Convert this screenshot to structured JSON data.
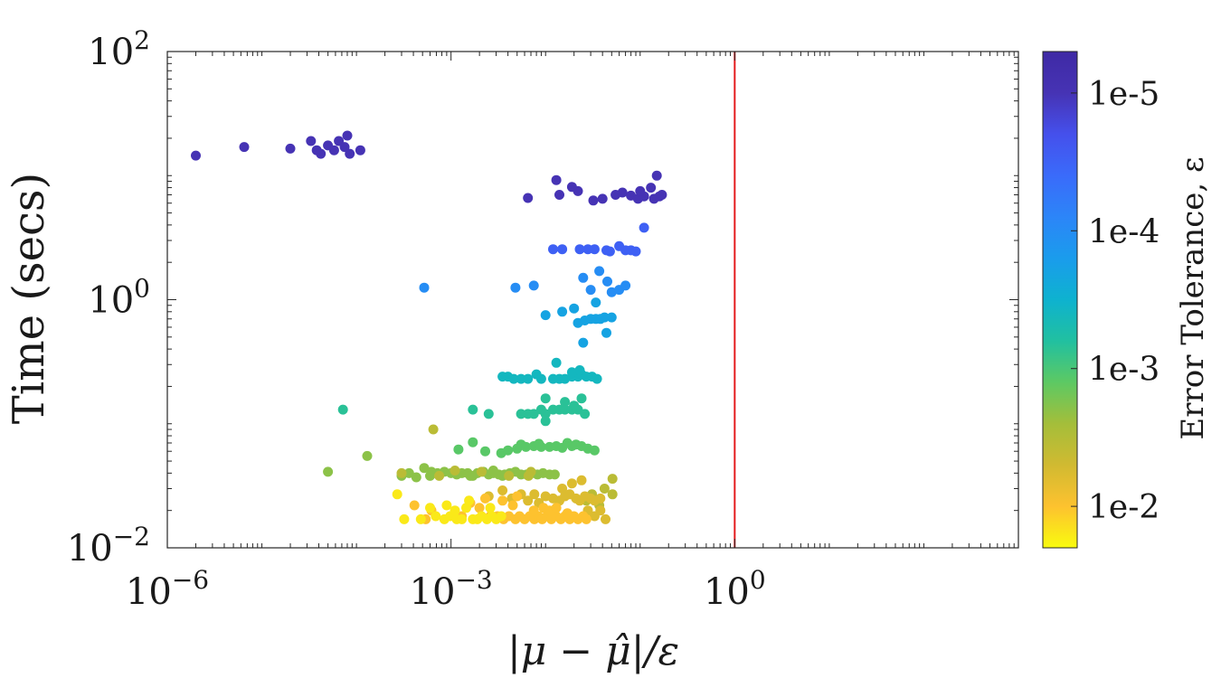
{
  "chart_data": {
    "type": "scatter",
    "xlabel": "|μ − μ̂|/ε",
    "ylabel": "Time (secs)",
    "colorbar_label": "Error Tolerance, ε",
    "x_scale": "log",
    "y_scale": "log",
    "xlim": [
      1e-06,
      1000
    ],
    "ylim": [
      0.01,
      100
    ],
    "x_ticks": [
      {
        "value": 1e-06,
        "base": "10",
        "exp": "−6"
      },
      {
        "value": 0.001,
        "base": "10",
        "exp": "−3"
      },
      {
        "value": 1,
        "base": "10",
        "exp": "0"
      }
    ],
    "y_ticks": [
      {
        "value": 0.01,
        "base": "10",
        "exp": "−2"
      },
      {
        "value": 1,
        "base": "10",
        "exp": "0"
      },
      {
        "value": 100,
        "base": "10",
        "exp": "2"
      }
    ],
    "colorbar": {
      "scale": "log",
      "range": [
        0.02,
        5e-06
      ],
      "ticks": [
        {
          "value": 1e-05,
          "label": "1e-5"
        },
        {
          "value": 0.0001,
          "label": "1e-4"
        },
        {
          "value": 0.001,
          "label": "1e-3"
        },
        {
          "value": 0.01,
          "label": "1e-2"
        }
      ],
      "colormap": [
        "#f9fb0e",
        "#fdc22f",
        "#d1ba31",
        "#a4be3a",
        "#5dc963",
        "#21c0a0",
        "#0eb2cf",
        "#1a9cec",
        "#2c85f8",
        "#3a6bfa",
        "#4550ec",
        "#4633b4",
        "#3f2aa5"
      ]
    },
    "reference_line": {
      "x": 1,
      "color": "#e41a1c"
    },
    "series": [
      {
        "tolerance": 1e-05,
        "points": [
          [
            2e-06,
            14.5
          ],
          [
            6.5e-06,
            17
          ],
          [
            2e-05,
            16.5
          ],
          [
            3.3e-05,
            19
          ],
          [
            3.8e-05,
            16
          ],
          [
            4.2e-05,
            15
          ],
          [
            5e-05,
            17.5
          ],
          [
            5.8e-05,
            16
          ],
          [
            6.5e-05,
            19
          ],
          [
            7.5e-05,
            17
          ],
          [
            8e-05,
            21
          ],
          [
            8.5e-05,
            15
          ],
          [
            0.00011,
            16
          ],
          [
            0.0065,
            6.6
          ],
          [
            0.013,
            9.2
          ],
          [
            0.014,
            7.0
          ],
          [
            0.019,
            8.1
          ],
          [
            0.022,
            7.5
          ],
          [
            0.032,
            6.3
          ],
          [
            0.04,
            6.5
          ],
          [
            0.055,
            7.0
          ],
          [
            0.065,
            7.3
          ],
          [
            0.08,
            6.9
          ],
          [
            0.095,
            6.5
          ],
          [
            0.11,
            6.8
          ],
          [
            0.13,
            8.0
          ],
          [
            0.14,
            6.5
          ],
          [
            0.15,
            10.0
          ],
          [
            0.16,
            6.8
          ],
          [
            0.1,
            7.5
          ],
          [
            0.17,
            7.0
          ]
        ]
      },
      {
        "tolerance": 3e-05,
        "points": [
          [
            0.012,
            2.55
          ],
          [
            0.015,
            2.55
          ],
          [
            0.023,
            2.55
          ],
          [
            0.028,
            2.55
          ],
          [
            0.033,
            2.55
          ],
          [
            0.044,
            2.5
          ],
          [
            0.048,
            2.45
          ],
          [
            0.06,
            2.7
          ],
          [
            0.07,
            2.5
          ],
          [
            0.08,
            2.5
          ],
          [
            0.09,
            2.45
          ],
          [
            0.11,
            3.8
          ]
        ]
      },
      {
        "tolerance": 0.0001,
        "points": [
          [
            0.00052,
            1.25
          ],
          [
            0.0048,
            1.25
          ],
          [
            0.0075,
            1.3
          ],
          [
            0.025,
            1.5
          ],
          [
            0.03,
            1.2
          ],
          [
            0.037,
            1.7
          ],
          [
            0.045,
            1.4
          ],
          [
            0.05,
            1.15
          ],
          [
            0.06,
            1.2
          ],
          [
            0.07,
            1.3
          ]
        ]
      },
      {
        "tolerance": 0.0002,
        "points": [
          [
            0.01,
            0.75
          ],
          [
            0.015,
            0.8
          ],
          [
            0.02,
            0.85
          ],
          [
            0.022,
            0.65
          ],
          [
            0.026,
            0.68
          ],
          [
            0.03,
            0.7
          ],
          [
            0.034,
            0.7
          ],
          [
            0.038,
            0.7
          ],
          [
            0.042,
            0.72
          ],
          [
            0.025,
            0.45
          ],
          [
            0.034,
            0.95
          ],
          [
            0.044,
            0.54
          ],
          [
            0.05,
            0.72
          ]
        ]
      },
      {
        "tolerance": 0.0004,
        "points": [
          [
            0.0035,
            0.24
          ],
          [
            0.004,
            0.24
          ],
          [
            0.0046,
            0.23
          ],
          [
            0.0055,
            0.23
          ],
          [
            0.0065,
            0.23
          ],
          [
            0.008,
            0.25
          ],
          [
            0.009,
            0.23
          ],
          [
            0.012,
            0.23
          ],
          [
            0.014,
            0.23
          ],
          [
            0.016,
            0.23
          ],
          [
            0.019,
            0.24
          ],
          [
            0.022,
            0.24
          ],
          [
            0.024,
            0.25
          ],
          [
            0.027,
            0.24
          ],
          [
            0.031,
            0.24
          ],
          [
            0.035,
            0.23
          ],
          [
            0.013,
            0.31
          ],
          [
            0.019,
            0.26
          ],
          [
            0.023,
            0.27
          ]
        ]
      },
      {
        "tolerance": 0.0007,
        "points": [
          [
            7.2e-05,
            0.13
          ],
          [
            0.0017,
            0.13
          ],
          [
            0.0025,
            0.12
          ],
          [
            0.0055,
            0.12
          ],
          [
            0.0065,
            0.12
          ],
          [
            0.0075,
            0.12
          ],
          [
            0.009,
            0.13
          ],
          [
            0.01,
            0.12
          ],
          [
            0.012,
            0.13
          ],
          [
            0.014,
            0.13
          ],
          [
            0.016,
            0.13
          ],
          [
            0.019,
            0.13
          ],
          [
            0.022,
            0.13
          ],
          [
            0.026,
            0.12
          ],
          [
            0.01,
            0.105
          ],
          [
            0.016,
            0.15
          ],
          [
            0.02,
            0.14
          ],
          [
            0.024,
            0.16
          ],
          [
            0.01,
            0.16
          ]
        ]
      },
      {
        "tolerance": 0.0012,
        "points": [
          [
            0.0012,
            0.062
          ],
          [
            0.0017,
            0.071
          ],
          [
            0.0023,
            0.06
          ],
          [
            0.0034,
            0.058
          ],
          [
            0.004,
            0.061
          ],
          [
            0.005,
            0.063
          ],
          [
            0.0055,
            0.068
          ],
          [
            0.0062,
            0.065
          ],
          [
            0.0075,
            0.066
          ],
          [
            0.0085,
            0.069
          ],
          [
            0.009,
            0.065
          ],
          [
            0.011,
            0.065
          ],
          [
            0.013,
            0.066
          ],
          [
            0.015,
            0.064
          ],
          [
            0.017,
            0.07
          ],
          [
            0.019,
            0.066
          ],
          [
            0.021,
            0.068
          ],
          [
            0.024,
            0.066
          ],
          [
            0.028,
            0.063
          ],
          [
            0.033,
            0.061
          ]
        ]
      },
      {
        "tolerance": 0.002,
        "points": [
          [
            5e-05,
            0.041
          ],
          [
            0.00013,
            0.055
          ],
          [
            0.00036,
            0.04
          ],
          [
            0.00043,
            0.037
          ],
          [
            0.00052,
            0.044
          ],
          [
            0.00062,
            0.041
          ],
          [
            0.00072,
            0.04
          ],
          [
            0.00085,
            0.041
          ],
          [
            0.001,
            0.04
          ],
          [
            0.00115,
            0.039
          ],
          [
            0.0013,
            0.04
          ],
          [
            0.0015,
            0.04
          ],
          [
            0.0017,
            0.038
          ],
          [
            0.0019,
            0.04
          ],
          [
            0.0022,
            0.041
          ],
          [
            0.0025,
            0.039
          ],
          [
            0.0028,
            0.04
          ],
          [
            0.0032,
            0.039
          ],
          [
            0.0037,
            0.039
          ],
          [
            0.0042,
            0.04
          ],
          [
            0.0048,
            0.041
          ],
          [
            0.0055,
            0.039
          ],
          [
            0.0063,
            0.039
          ],
          [
            0.0072,
            0.04
          ],
          [
            0.0082,
            0.039
          ],
          [
            0.0094,
            0.04
          ],
          [
            0.011,
            0.039
          ],
          [
            0.0125,
            0.039
          ],
          [
            0.0003,
            0.038
          ],
          [
            0.0006,
            0.038
          ],
          [
            0.0028,
            0.042
          ],
          [
            0.0016,
            0.038
          ],
          [
            0.0035,
            0.038
          ]
        ]
      },
      {
        "tolerance": 0.0035,
        "points": [
          [
            0.00065,
            0.09
          ],
          [
            0.0003,
            0.04
          ],
          [
            0.00075,
            0.038
          ],
          [
            0.0011,
            0.042
          ],
          [
            0.0021,
            0.041
          ],
          [
            0.0041,
            0.038
          ],
          [
            0.0066,
            0.038
          ],
          [
            0.007,
            0.041
          ],
          [
            0.051,
            0.036
          ],
          [
            0.037,
            0.022
          ],
          [
            0.051,
            0.027
          ],
          [
            0.042,
            0.03
          ],
          [
            0.031,
            0.027
          ],
          [
            0.027,
            0.024
          ]
        ]
      },
      {
        "tolerance": 0.006,
        "points": [
          [
            0.0025,
            0.026
          ],
          [
            0.0035,
            0.029
          ],
          [
            0.0044,
            0.025
          ],
          [
            0.0055,
            0.027
          ],
          [
            0.0065,
            0.024
          ],
          [
            0.0076,
            0.027
          ],
          [
            0.0085,
            0.023
          ],
          [
            0.01,
            0.026
          ],
          [
            0.012,
            0.025
          ],
          [
            0.014,
            0.024
          ],
          [
            0.016,
            0.026
          ],
          [
            0.018,
            0.027
          ],
          [
            0.021,
            0.025
          ],
          [
            0.023,
            0.024
          ],
          [
            0.026,
            0.026
          ],
          [
            0.03,
            0.025
          ],
          [
            0.033,
            0.024
          ],
          [
            0.038,
            0.025
          ],
          [
            0.024,
            0.035
          ],
          [
            0.015,
            0.03
          ],
          [
            0.019,
            0.033
          ],
          [
            0.028,
            0.02
          ],
          [
            0.033,
            0.018
          ],
          [
            0.038,
            0.02
          ],
          [
            0.043,
            0.017
          ]
        ]
      },
      {
        "tolerance": 0.01,
        "points": [
          [
            0.00041,
            0.022
          ],
          [
            0.00062,
            0.02
          ],
          [
            0.0013,
            0.018
          ],
          [
            0.0016,
            0.023
          ],
          [
            0.002,
            0.021
          ],
          [
            0.0023,
            0.025
          ],
          [
            0.0026,
            0.018
          ],
          [
            0.0031,
            0.018
          ],
          [
            0.0036,
            0.017
          ],
          [
            0.0041,
            0.018
          ],
          [
            0.0048,
            0.017
          ],
          [
            0.0053,
            0.018
          ],
          [
            0.006,
            0.017
          ],
          [
            0.0068,
            0.018
          ],
          [
            0.0076,
            0.017
          ],
          [
            0.0084,
            0.018
          ],
          [
            0.0092,
            0.017
          ],
          [
            0.0103,
            0.018
          ],
          [
            0.0115,
            0.017
          ],
          [
            0.013,
            0.018
          ],
          [
            0.0145,
            0.017
          ],
          [
            0.016,
            0.018
          ],
          [
            0.018,
            0.017
          ],
          [
            0.02,
            0.018
          ],
          [
            0.022,
            0.017
          ],
          [
            0.025,
            0.018
          ],
          [
            0.027,
            0.017
          ],
          [
            0.0075,
            0.02
          ],
          [
            0.0095,
            0.021
          ],
          [
            0.011,
            0.02
          ],
          [
            0.00054,
            0.017
          ],
          [
            0.0035,
            0.024
          ],
          [
            0.005,
            0.026
          ],
          [
            0.0045,
            0.022
          ],
          [
            0.013,
            0.021
          ],
          [
            0.017,
            0.019
          ]
        ]
      },
      {
        "tolerance": 0.016,
        "points": [
          [
            0.00027,
            0.027
          ],
          [
            0.00032,
            0.017
          ],
          [
            0.00048,
            0.017
          ],
          [
            0.00069,
            0.018
          ],
          [
            0.00085,
            0.017
          ],
          [
            0.00098,
            0.018
          ],
          [
            0.00115,
            0.017
          ],
          [
            0.0013,
            0.017
          ],
          [
            0.00145,
            0.021
          ],
          [
            0.00155,
            0.024
          ],
          [
            0.0017,
            0.017
          ],
          [
            0.0019,
            0.017
          ],
          [
            0.0021,
            0.018
          ],
          [
            0.0024,
            0.017
          ],
          [
            0.0027,
            0.018
          ],
          [
            0.003,
            0.017
          ],
          [
            0.0034,
            0.018
          ],
          [
            0.0009,
            0.022
          ],
          [
            0.0006,
            0.021
          ],
          [
            0.0011,
            0.02
          ],
          [
            0.0026,
            0.021
          ]
        ]
      }
    ]
  }
}
